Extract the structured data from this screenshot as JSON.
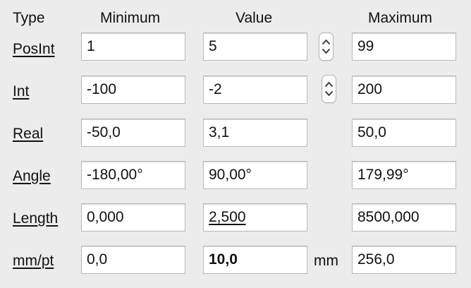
{
  "headers": {
    "type": "Type",
    "minimum": "Minimum",
    "value": "Value",
    "maximum": "Maximum"
  },
  "rows": [
    {
      "label": "PosInt",
      "minimum": "1",
      "value": "5",
      "maximum": "99",
      "stepper": true
    },
    {
      "label": "Int",
      "minimum": "-100",
      "value": "-2",
      "maximum": "200",
      "stepper": true
    },
    {
      "label": "Real",
      "minimum": "-50,0",
      "value": "3,1",
      "maximum": "50,0"
    },
    {
      "label": "Angle",
      "minimum": "-180,00°",
      "value": "90,00°",
      "maximum": "179,99°"
    },
    {
      "label": "Length",
      "minimum": "0,000",
      "value": "2,500",
      "maximum": "8500,000"
    },
    {
      "label": "mm/pt",
      "minimum": "0,0",
      "value": "10,0",
      "maximum": "256,0",
      "unit": "mm"
    }
  ],
  "icons": {
    "stepper": "up-down-chevron-icon"
  },
  "colors": {
    "background": "#ececec",
    "field_background": "#ffffff",
    "field_border": "#b9b9b9",
    "text": "#111111"
  }
}
